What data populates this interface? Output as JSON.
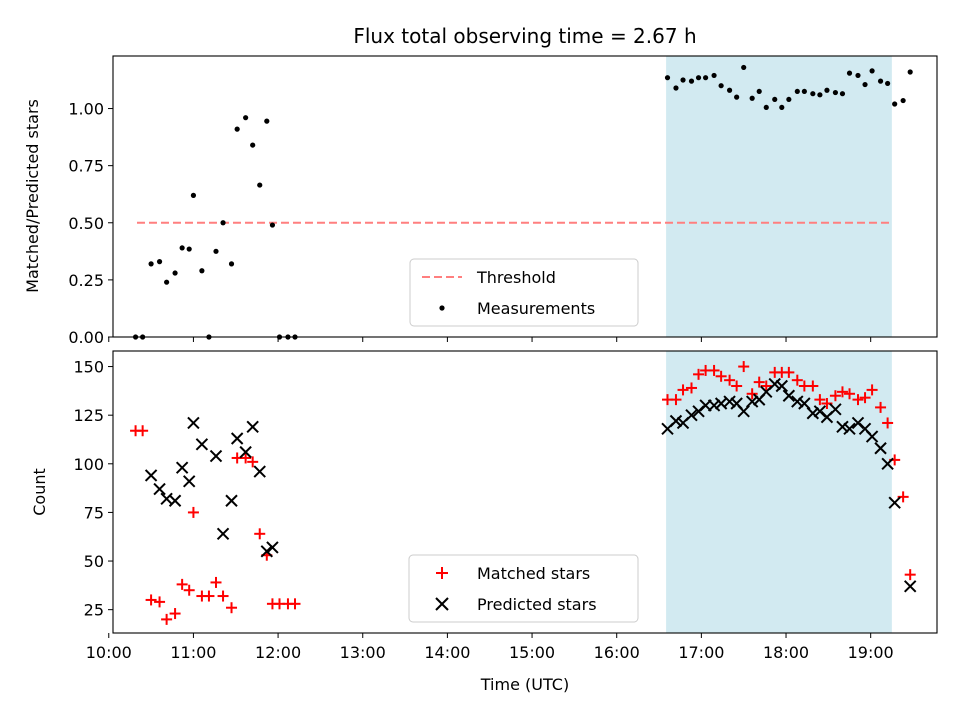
{
  "title": "Flux total observing time = 2.67 h",
  "xlabel": "Time (UTC)",
  "x_ticks": [
    "10:00",
    "11:00",
    "12:00",
    "13:00",
    "14:00",
    "15:00",
    "16:00",
    "17:00",
    "18:00",
    "19:00"
  ],
  "colors": {
    "threshold": "#ff7f7f",
    "measurements": "#000000",
    "matched": "#ff0000",
    "predicted": "#000000",
    "shade": "#add8e6"
  },
  "chart_data": [
    {
      "type": "scatter",
      "ylabel": "Matched/Predicted stars",
      "xlim": [
        "10:03",
        "19:47"
      ],
      "ylim": [
        0,
        1.23
      ],
      "y_ticks": [
        "0.00",
        "0.25",
        "0.50",
        "0.75",
        "1.00"
      ],
      "y_tick_values": [
        0,
        0.25,
        0.5,
        0.75,
        1.0
      ],
      "shaded_region": [
        "16:35",
        "19:15"
      ],
      "threshold": {
        "label": "Threshold",
        "value": 0.5,
        "x_range": [
          "10:20",
          "19:15"
        ],
        "style": "dashed"
      },
      "series": [
        {
          "name": "Measurements",
          "points": [
            [
              "10:19",
              0
            ],
            [
              "10:24",
              0
            ],
            [
              "10:30",
              0.32
            ],
            [
              "10:36",
              0.33
            ],
            [
              "10:41",
              0.24
            ],
            [
              "10:47",
              0.28
            ],
            [
              "10:52",
              0.39
            ],
            [
              "10:57",
              0.385
            ],
            [
              "11:00",
              0.62
            ],
            [
              "11:06",
              0.29
            ],
            [
              "11:11",
              0
            ],
            [
              "11:16",
              0.375
            ],
            [
              "11:21",
              0.5
            ],
            [
              "11:27",
              0.32
            ],
            [
              "11:31",
              0.91
            ],
            [
              "11:37",
              0.96
            ],
            [
              "11:42",
              0.84
            ],
            [
              "11:47",
              0.665
            ],
            [
              "11:52",
              0.945
            ],
            [
              "11:56",
              0.49
            ],
            [
              "12:01",
              0
            ],
            [
              "12:07",
              0
            ],
            [
              "12:12",
              0
            ],
            [
              "16:36",
              1.135
            ],
            [
              "16:42",
              1.09
            ],
            [
              "16:47",
              1.125
            ],
            [
              "16:53",
              1.12
            ],
            [
              "16:58",
              1.135
            ],
            [
              "17:03",
              1.135
            ],
            [
              "17:09",
              1.145
            ],
            [
              "17:14",
              1.1
            ],
            [
              "17:20",
              1.08
            ],
            [
              "17:25",
              1.05
            ],
            [
              "17:30",
              1.18
            ],
            [
              "17:36",
              1.045
            ],
            [
              "17:41",
              1.075
            ],
            [
              "17:46",
              1.005
            ],
            [
              "17:52",
              1.04
            ],
            [
              "17:57",
              1.005
            ],
            [
              "18:02",
              1.04
            ],
            [
              "18:08",
              1.075
            ],
            [
              "18:13",
              1.075
            ],
            [
              "18:19",
              1.065
            ],
            [
              "18:24",
              1.06
            ],
            [
              "18:29",
              1.08
            ],
            [
              "18:35",
              1.07
            ],
            [
              "18:40",
              1.065
            ],
            [
              "18:45",
              1.155
            ],
            [
              "18:51",
              1.145
            ],
            [
              "18:56",
              1.105
            ],
            [
              "19:01",
              1.165
            ],
            [
              "19:07",
              1.12
            ],
            [
              "19:12",
              1.11
            ],
            [
              "19:17",
              1.02
            ],
            [
              "19:23",
              1.035
            ],
            [
              "19:28",
              1.16
            ]
          ]
        }
      ],
      "legend": {
        "location": "lower center",
        "entries": [
          "Threshold",
          "Measurements"
        ]
      }
    },
    {
      "type": "scatter",
      "ylabel": "Count",
      "xlim": [
        "10:03",
        "19:47"
      ],
      "ylim": [
        13,
        158
      ],
      "y_ticks": [
        "25",
        "50",
        "75",
        "100",
        "125",
        "150"
      ],
      "y_tick_values": [
        25,
        50,
        75,
        100,
        125,
        150
      ],
      "shaded_region": [
        "16:35",
        "19:15"
      ],
      "series": [
        {
          "name": "Matched stars",
          "marker": "plus",
          "points": [
            [
              "10:19",
              117
            ],
            [
              "10:24",
              117
            ],
            [
              "10:30",
              30
            ],
            [
              "10:36",
              29
            ],
            [
              "10:41",
              20
            ],
            [
              "10:47",
              23
            ],
            [
              "10:52",
              38
            ],
            [
              "10:57",
              35
            ],
            [
              "11:00",
              75
            ],
            [
              "11:06",
              32
            ],
            [
              "11:11",
              32
            ],
            [
              "11:16",
              39
            ],
            [
              "11:21",
              32
            ],
            [
              "11:27",
              26
            ],
            [
              "11:31",
              103
            ],
            [
              "11:37",
              103
            ],
            [
              "11:42",
              101
            ],
            [
              "11:47",
              64
            ],
            [
              "11:52",
              53
            ],
            [
              "11:56",
              28
            ],
            [
              "12:01",
              28
            ],
            [
              "12:07",
              28
            ],
            [
              "12:12",
              28
            ],
            [
              "16:36",
              133
            ],
            [
              "16:42",
              133
            ],
            [
              "16:47",
              138
            ],
            [
              "16:53",
              139
            ],
            [
              "16:58",
              146
            ],
            [
              "17:03",
              148
            ],
            [
              "17:09",
              148
            ],
            [
              "17:14",
              145
            ],
            [
              "17:20",
              143
            ],
            [
              "17:25",
              140
            ],
            [
              "17:30",
              150
            ],
            [
              "17:36",
              136
            ],
            [
              "17:41",
              142
            ],
            [
              "17:46",
              140
            ],
            [
              "17:52",
              147
            ],
            [
              "17:57",
              147
            ],
            [
              "18:02",
              147
            ],
            [
              "18:08",
              143
            ],
            [
              "18:13",
              140
            ],
            [
              "18:19",
              140
            ],
            [
              "18:24",
              133
            ],
            [
              "18:29",
              131
            ],
            [
              "18:35",
              135
            ],
            [
              "18:40",
              137
            ],
            [
              "18:45",
              136
            ],
            [
              "18:51",
              133
            ],
            [
              "18:56",
              134
            ],
            [
              "19:01",
              138
            ],
            [
              "19:07",
              129
            ],
            [
              "19:12",
              121
            ],
            [
              "19:17",
              102
            ],
            [
              "19:23",
              83
            ],
            [
              "19:28",
              43
            ]
          ]
        },
        {
          "name": "Predicted stars",
          "marker": "x",
          "points": [
            [
              "10:30",
              94
            ],
            [
              "10:36",
              87
            ],
            [
              "10:41",
              82
            ],
            [
              "10:47",
              81
            ],
            [
              "10:52",
              98
            ],
            [
              "10:57",
              91
            ],
            [
              "11:00",
              121
            ],
            [
              "11:06",
              110
            ],
            [
              "11:16",
              104
            ],
            [
              "11:21",
              64
            ],
            [
              "11:27",
              81
            ],
            [
              "11:31",
              113
            ],
            [
              "11:37",
              106
            ],
            [
              "11:42",
              119
            ],
            [
              "11:47",
              96
            ],
            [
              "11:52",
              55
            ],
            [
              "11:56",
              57
            ],
            [
              "16:36",
              118
            ],
            [
              "16:42",
              122
            ],
            [
              "16:47",
              121
            ],
            [
              "16:53",
              125
            ],
            [
              "16:58",
              127
            ],
            [
              "17:03",
              130
            ],
            [
              "17:09",
              130
            ],
            [
              "17:14",
              131
            ],
            [
              "17:20",
              132
            ],
            [
              "17:25",
              131
            ],
            [
              "17:30",
              127
            ],
            [
              "17:36",
              132
            ],
            [
              "17:41",
              133
            ],
            [
              "17:46",
              137
            ],
            [
              "17:52",
              141
            ],
            [
              "17:57",
              140
            ],
            [
              "18:02",
              135
            ],
            [
              "18:08",
              132
            ],
            [
              "18:13",
              131
            ],
            [
              "18:19",
              126
            ],
            [
              "18:24",
              127
            ],
            [
              "18:29",
              124
            ],
            [
              "18:35",
              128
            ],
            [
              "18:40",
              119
            ],
            [
              "18:45",
              118
            ],
            [
              "18:51",
              121
            ],
            [
              "18:56",
              118
            ],
            [
              "19:01",
              114
            ],
            [
              "19:07",
              108
            ],
            [
              "19:12",
              100
            ],
            [
              "19:17",
              80
            ],
            [
              "19:28",
              37
            ]
          ]
        }
      ],
      "legend": {
        "location": "lower center",
        "entries": [
          "Matched stars",
          "Predicted stars"
        ]
      }
    }
  ]
}
